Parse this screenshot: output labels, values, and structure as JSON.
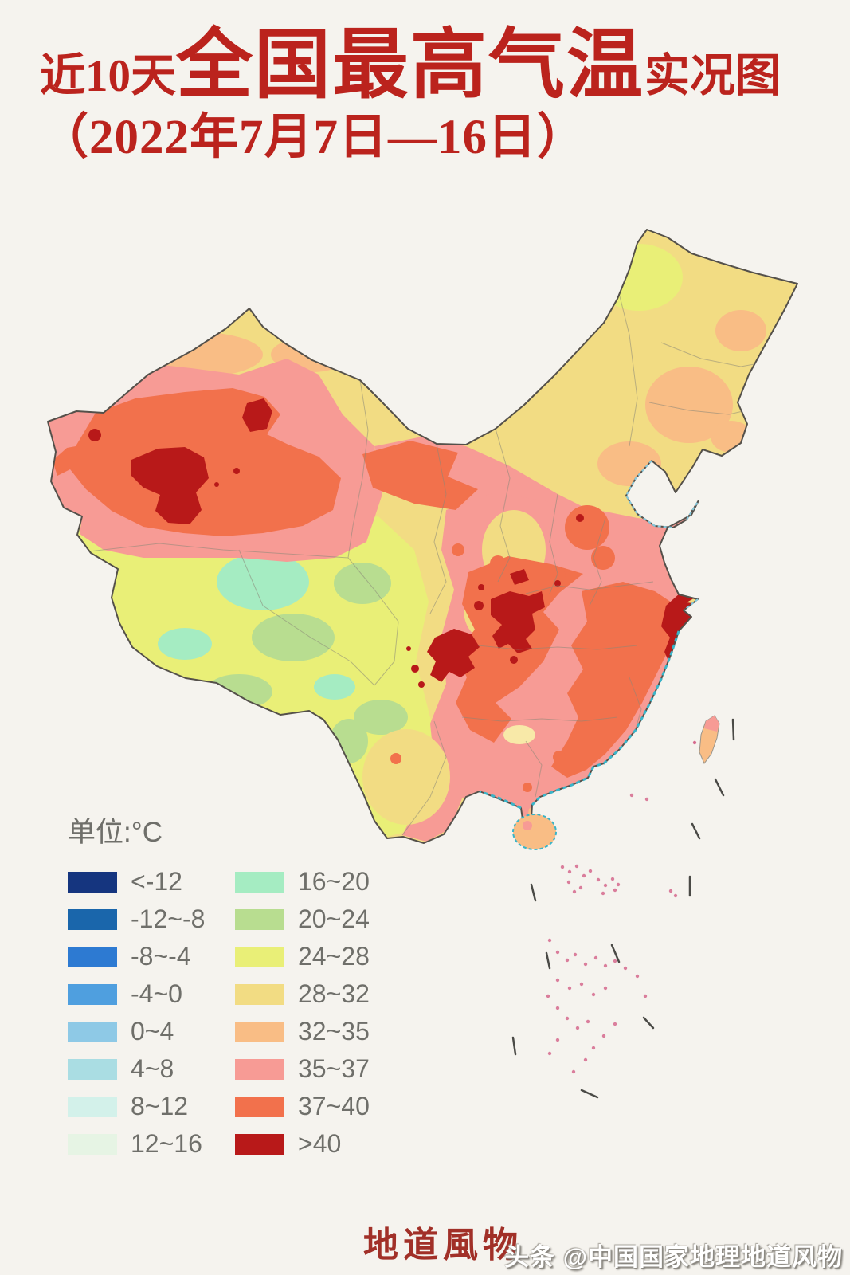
{
  "title": {
    "prefix": "近10天",
    "main": "全国最高气温",
    "suffix": "实况图",
    "line2": "（2022年7月7日—16日）"
  },
  "legend": {
    "unit_label": "单位:°C",
    "left": [
      {
        "label": "<-12",
        "color": "#15357f"
      },
      {
        "label": "-12~-8",
        "color": "#1a66ab"
      },
      {
        "label": "-8~-4",
        "color": "#2d7ad2"
      },
      {
        "label": "-4~0",
        "color": "#4f9fdf"
      },
      {
        "label": "0~4",
        "color": "#8ec9e6"
      },
      {
        "label": "4~8",
        "color": "#aadde3"
      },
      {
        "label": "8~12",
        "color": "#d3f1ea"
      },
      {
        "label": "12~16",
        "color": "#e6f4e4"
      }
    ],
    "right": [
      {
        "label": "16~20",
        "color": "#a5ecc2"
      },
      {
        "label": "20~24",
        "color": "#b8dd90"
      },
      {
        "label": "24~28",
        "color": "#e9ef77"
      },
      {
        "label": "28~32",
        "color": "#f2dc83"
      },
      {
        "label": "32~35",
        "color": "#f9bd85"
      },
      {
        "label": "35~37",
        "color": "#f79b95"
      },
      {
        "label": "37~40",
        "color": "#f2714c"
      },
      {
        "label": ">40",
        "color": "#b81919"
      }
    ]
  },
  "footer": {
    "logo": "地道風物",
    "watermark": "头条 @中国国家地理地道风物"
  },
  "colors": {
    "background": "#f5f3ee",
    "title_red": "#bb231d",
    "legend_text_gray": "#6f6f6a",
    "map_outline": "#54504a",
    "province_border": "#8a8878",
    "coast_teal": "#3ab4c8",
    "bohai_blue": "#85c8dc",
    "island_speck_pink": "#d66a8e",
    "nine_dash_dark": "#4a4a46",
    "logo_red": "#a13028",
    "watermark_white": "#ffffff"
  }
}
